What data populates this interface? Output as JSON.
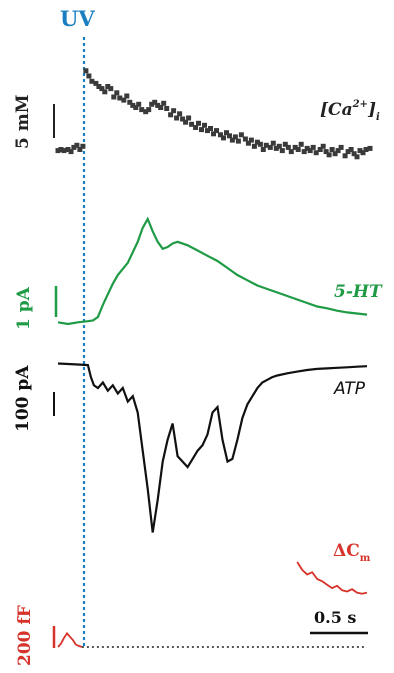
{
  "stimulus": {
    "label": "UV",
    "color": "#1a7fc1"
  },
  "chart_data": [
    {
      "type": "scatter",
      "series": [
        {
          "name": "[Ca2+]i",
          "label_main": "[Ca",
          "label_sup": "2+",
          "label_close": "]",
          "label_sub": "i"
        }
      ],
      "scale_bar": {
        "label": "5 mM"
      },
      "color": "#3a3a3a",
      "x": [
        0.0,
        0.03,
        0.06,
        0.1,
        0.13,
        0.16,
        0.19,
        0.22,
        0.25,
        0.28,
        0.31,
        0.34,
        0.38,
        0.41,
        0.44,
        0.47,
        0.5,
        0.53,
        0.56,
        0.59,
        0.62,
        0.66,
        0.69,
        0.72,
        0.75,
        0.78,
        0.81,
        0.84,
        0.88,
        0.91,
        0.94,
        0.97,
        1.0,
        1.03,
        1.06,
        1.09,
        1.13,
        1.16,
        1.19,
        1.22,
        1.25,
        1.28,
        1.31,
        1.34,
        1.38,
        1.41,
        1.44,
        1.47,
        1.5,
        1.53,
        1.56,
        1.59,
        1.63,
        1.66,
        1.69,
        1.72,
        1.75,
        1.78,
        1.81,
        1.84,
        1.88,
        1.91,
        1.94,
        1.97,
        2.0,
        2.03,
        2.06,
        2.09,
        2.13,
        2.16,
        2.19,
        2.22,
        2.25,
        2.28,
        2.31,
        2.34,
        2.38,
        2.41,
        2.44,
        2.47,
        2.5,
        2.53,
        2.56,
        2.59,
        2.63,
        2.66,
        2.69,
        2.72,
        2.75,
        2.78,
        2.81,
        2.84,
        2.88,
        2.91,
        2.94,
        2.97,
        3.0,
        3.03,
        3.06,
        3.09,
        3.13
      ],
      "y": [
        0.9,
        1.0,
        0.9,
        1.0,
        0.8,
        1.2,
        1.4,
        1.0,
        1.3,
        8.5,
        8.0,
        7.5,
        7.3,
        7.0,
        6.8,
        6.5,
        7.0,
        6.8,
        6.0,
        6.4,
        5.9,
        5.7,
        6.1,
        5.5,
        5.2,
        5.0,
        5.3,
        4.8,
        4.6,
        4.8,
        5.3,
        5.5,
        5.2,
        5.0,
        5.4,
        4.9,
        4.3,
        4.7,
        4.0,
        4.4,
        3.9,
        3.6,
        4.0,
        3.4,
        3.1,
        3.5,
        2.9,
        3.3,
        2.8,
        3.0,
        2.5,
        2.8,
        2.4,
        2.1,
        2.6,
        2.3,
        1.9,
        2.2,
        1.8,
        2.4,
        2.0,
        1.6,
        1.9,
        1.3,
        1.7,
        1.5,
        1.0,
        1.4,
        1.2,
        1.6,
        1.1,
        1.3,
        0.9,
        1.5,
        1.2,
        0.8,
        1.2,
        1.0,
        1.5,
        0.8,
        1.1,
        0.9,
        1.2,
        0.7,
        1.0,
        1.3,
        0.8,
        0.5,
        1.0,
        0.6,
        0.9,
        1.2,
        0.4,
        0.8,
        1.0,
        0.6,
        0.3,
        0.9,
        0.7,
        1.0,
        1.1
      ],
      "ylim": [
        0,
        10
      ]
    },
    {
      "type": "line",
      "series": [
        {
          "name": "5-HT"
        }
      ],
      "scale_bar": {
        "label": "1 pA"
      },
      "color": "#1f9a45",
      "x": [
        0,
        0.1,
        0.2,
        0.3,
        0.35,
        0.4,
        0.45,
        0.5,
        0.55,
        0.6,
        0.7,
        0.8,
        0.85,
        0.9,
        0.95,
        1.0,
        1.05,
        1.1,
        1.15,
        1.2,
        1.3,
        1.4,
        1.5,
        1.6,
        1.7,
        1.8,
        1.9,
        2.0,
        2.1,
        2.2,
        2.3,
        2.4,
        2.5,
        2.6,
        2.7,
        2.8,
        2.9,
        3.0,
        3.1
      ],
      "y": [
        0.05,
        0.0,
        0.05,
        0.08,
        0.1,
        0.2,
        0.55,
        0.85,
        1.15,
        1.4,
        1.75,
        2.35,
        2.75,
        3.0,
        2.65,
        2.35,
        2.15,
        2.2,
        2.3,
        2.35,
        2.25,
        2.1,
        1.95,
        1.8,
        1.6,
        1.4,
        1.25,
        1.1,
        1.0,
        0.9,
        0.8,
        0.7,
        0.6,
        0.5,
        0.45,
        0.38,
        0.33,
        0.3,
        0.27
      ],
      "ylim": [
        0,
        3.2
      ]
    },
    {
      "type": "line",
      "series": [
        {
          "name": "ATP"
        }
      ],
      "scale_bar": {
        "label": "100 pA"
      },
      "color": "#111111",
      "x": [
        0,
        0.2,
        0.3,
        0.33,
        0.36,
        0.4,
        0.45,
        0.5,
        0.55,
        0.6,
        0.65,
        0.7,
        0.75,
        0.8,
        0.85,
        0.9,
        0.95,
        1.0,
        1.05,
        1.1,
        1.15,
        1.2,
        1.25,
        1.3,
        1.35,
        1.4,
        1.45,
        1.5,
        1.55,
        1.6,
        1.65,
        1.7,
        1.75,
        1.8,
        1.85,
        1.9,
        1.95,
        2.0,
        2.05,
        2.1,
        2.15,
        2.2,
        2.3,
        2.4,
        2.5,
        2.6,
        2.7,
        2.8,
        2.9,
        3.0,
        3.1
      ],
      "y": [
        0,
        -2,
        -3,
        -25,
        -40,
        -45,
        -35,
        -50,
        -40,
        -55,
        -45,
        -70,
        -60,
        -90,
        -160,
        -230,
        -310,
        -250,
        -180,
        -140,
        -110,
        -170,
        -180,
        -190,
        -175,
        -160,
        -150,
        -130,
        -90,
        -80,
        -140,
        -180,
        -175,
        -140,
        -100,
        -75,
        -60,
        -45,
        -35,
        -30,
        -25,
        -22,
        -18,
        -15,
        -12,
        -10,
        -9,
        -8,
        -7,
        -6,
        -5
      ],
      "ylim": [
        -320,
        10
      ]
    },
    {
      "type": "line",
      "series": [
        {
          "name": "ΔCm",
          "label_main": "ΔC",
          "label_sub": "m"
        }
      ],
      "scale_bar": {
        "label": "200 fF"
      },
      "time_bar": {
        "label": "0.5 s"
      },
      "color": "#d6332a",
      "baseline_color": "#555555",
      "segments": [
        {
          "x": [
            0.0,
            0.03,
            0.06,
            0.09,
            0.12,
            0.15,
            0.18,
            0.21,
            0.24
          ],
          "y": [
            0,
            3,
            8,
            12,
            9,
            6,
            2,
            1,
            0
          ]
        },
        {
          "x": [
            2.4,
            2.45,
            2.5,
            2.55,
            2.6,
            2.65,
            2.7,
            2.75,
            2.8,
            2.85,
            2.9,
            2.95,
            3.0,
            3.05,
            3.1
          ],
          "y": [
            75,
            68,
            64,
            66,
            60,
            58,
            55,
            52,
            54,
            50,
            49,
            51,
            48,
            47,
            48
          ]
        }
      ],
      "baseline_x": [
        0.24,
        3.1
      ],
      "ylim": [
        0,
        90
      ]
    }
  ]
}
